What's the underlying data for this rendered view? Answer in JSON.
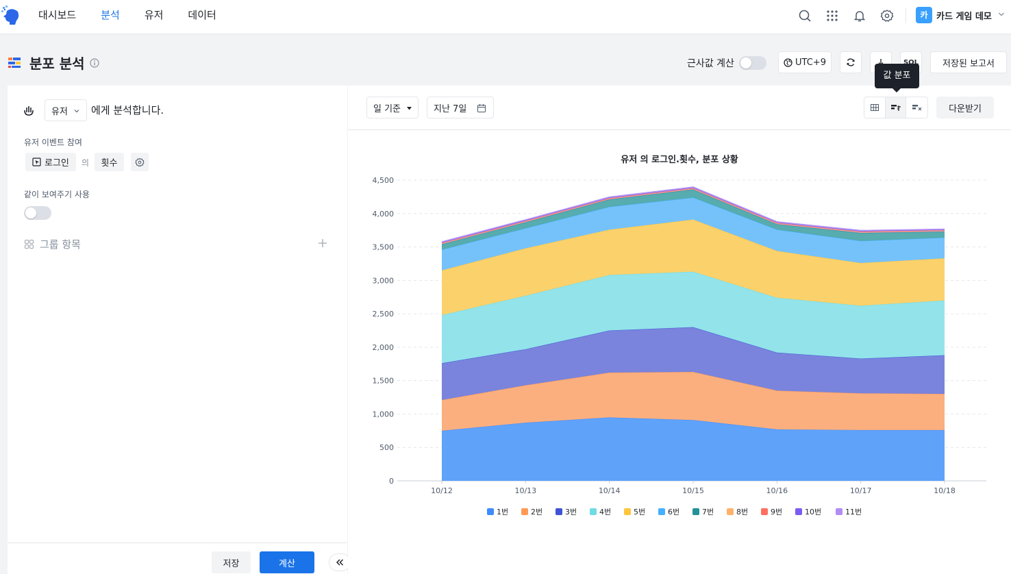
{
  "nav": {
    "tabs": [
      {
        "label": "대시보드",
        "active": false
      },
      {
        "label": "분석",
        "active": true
      },
      {
        "label": "유저",
        "active": false
      },
      {
        "label": "데이터",
        "active": false
      }
    ],
    "avatar_initial": "카",
    "project_name": "카드 게임 데모",
    "icons": [
      "search-icon",
      "apps-grid-icon",
      "bell-icon",
      "gear-icon"
    ]
  },
  "header": {
    "title": "분포 분석",
    "approx_label": "근사값 계산",
    "approx_on": false,
    "timezone": "UTC+9",
    "sql_label": "SQL",
    "saved_reports": "저장된 보고서",
    "tooltip": "값 분포"
  },
  "left": {
    "subject": "유저",
    "sentence": "에게 분석합니다.",
    "event_section": "유저 이벤트 참여",
    "event": "로그인",
    "of": "의",
    "metric": "횟수",
    "compare_section": "같이 보여주기 사용",
    "compare_on": false,
    "group_label": "그룹 항목",
    "save": "저장",
    "calculate": "계산"
  },
  "right": {
    "granularity": "일 기준",
    "range": "지난 7일",
    "download": "다운받기"
  },
  "colors": {
    "accent": "#1a73e8",
    "series": [
      "#3d8bff",
      "#ff9a55",
      "#4052d6",
      "#6fdce4",
      "#ffc53d",
      "#45b0ff",
      "#23919a",
      "#ffb26b",
      "#ff6f61",
      "#7a5cf0",
      "#b28cf5"
    ],
    "fills": [
      "#5fa2fa",
      "#fbaf7e",
      "#7a84dc",
      "#93e3ea",
      "#fbd16b",
      "#75c2fb",
      "#56acae",
      "#c98fd6",
      "#f58c8c",
      "#9f88f0",
      "#c7aef5"
    ]
  },
  "chart_data": {
    "type": "area",
    "stacked": true,
    "title": "유저 의 로그인.횟수,  분포 상황",
    "x": [
      "10/12",
      "10/13",
      "10/14",
      "10/15",
      "10/16",
      "10/17",
      "10/18"
    ],
    "ylim": [
      0,
      4500
    ],
    "yticks": [
      0,
      500,
      1000,
      1500,
      2000,
      2500,
      3000,
      3500,
      4000,
      4500
    ],
    "ytick_labels": [
      "0",
      "500",
      "1,000",
      "1,500",
      "2,000",
      "2,500",
      "3,000",
      "3,500",
      "4,000",
      "4,500"
    ],
    "grid": true,
    "legend": "bottom",
    "series": [
      {
        "name": "1번",
        "values": [
          750,
          870,
          950,
          910,
          770,
          760,
          760
        ]
      },
      {
        "name": "2번",
        "values": [
          460,
          560,
          670,
          720,
          580,
          550,
          540
        ]
      },
      {
        "name": "3번",
        "values": [
          550,
          540,
          630,
          670,
          570,
          520,
          580
        ]
      },
      {
        "name": "4번",
        "values": [
          720,
          800,
          830,
          830,
          820,
          790,
          820
        ]
      },
      {
        "name": "5번",
        "values": [
          670,
          710,
          680,
          780,
          700,
          640,
          630
        ]
      },
      {
        "name": "6번",
        "values": [
          310,
          300,
          340,
          330,
          320,
          330,
          310
        ]
      },
      {
        "name": "7번",
        "values": [
          80,
          90,
          110,
          120,
          80,
          120,
          90
        ]
      },
      {
        "name": "8번",
        "values": [
          10,
          10,
          10,
          10,
          10,
          10,
          10
        ]
      },
      {
        "name": "9번",
        "values": [
          10,
          10,
          10,
          10,
          10,
          10,
          10
        ]
      },
      {
        "name": "10번",
        "values": [
          10,
          10,
          10,
          10,
          10,
          10,
          10
        ]
      },
      {
        "name": "11번",
        "values": [
          10,
          10,
          10,
          10,
          10,
          10,
          10
        ]
      }
    ]
  }
}
